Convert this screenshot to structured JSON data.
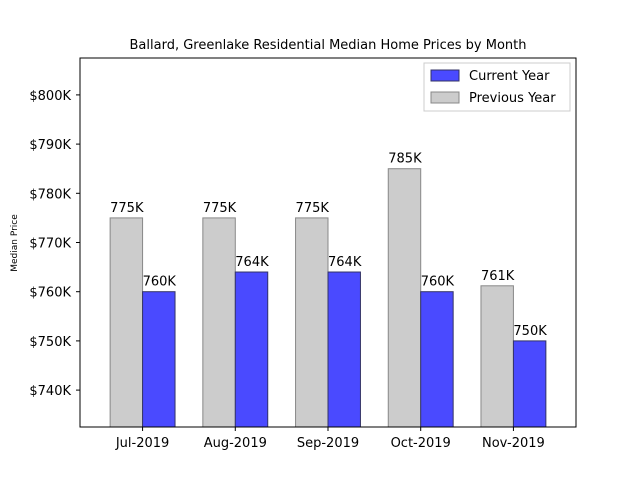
{
  "chart_data": {
    "type": "bar",
    "title": "Ballard, Greenlake Residential Median Home Prices by Month",
    "xlabel": "",
    "ylabel": "Median Price",
    "categories": [
      "Jul-2019",
      "Aug-2019",
      "Sep-2019",
      "Oct-2019",
      "Nov-2019"
    ],
    "ylim": [
      732.5,
      807.5
    ],
    "yticks": [
      740,
      750,
      760,
      770,
      780,
      790,
      800
    ],
    "ytick_labels": [
      "$740K",
      "$750K",
      "$760K",
      "$770K",
      "$780K",
      "$790K",
      "$800K"
    ],
    "series": [
      {
        "name": "Previous Year",
        "values": [
          775,
          775,
          775,
          785,
          761.2
        ],
        "labels": [
          "775K",
          "775K",
          "775K",
          "785K",
          "761K"
        ],
        "color": "#cccccc",
        "edge": "#888888"
      },
      {
        "name": "Current Year",
        "values": [
          760,
          764,
          764,
          760,
          750
        ],
        "labels": [
          "760K",
          "764K",
          "764K",
          "760K",
          "750K"
        ],
        "color": "#4a4aff",
        "edge": "#333366"
      }
    ],
    "legend": {
      "position": "top-right",
      "entries": [
        "Current Year",
        "Previous Year"
      ]
    },
    "grid": false
  }
}
